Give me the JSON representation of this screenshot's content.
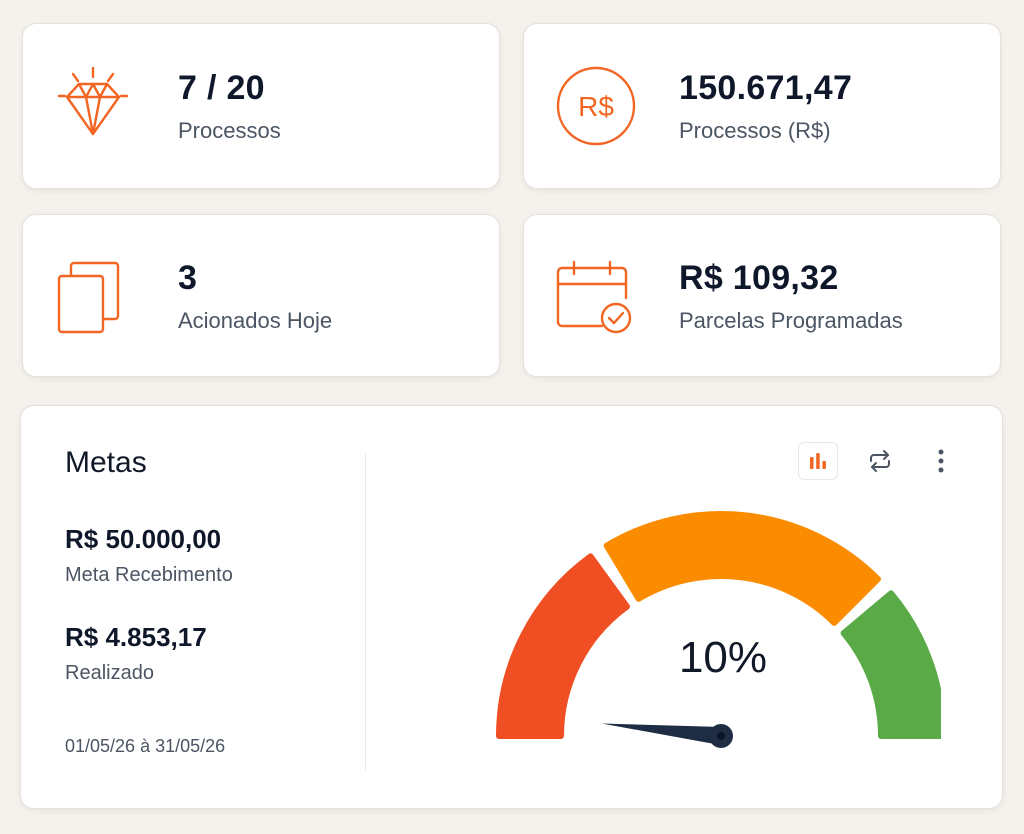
{
  "stats": [
    {
      "value": "7 / 20",
      "label": "Processos",
      "icon": "diamond-icon"
    },
    {
      "value": "150.671,47",
      "label": "Processos (R$)",
      "icon": "currency-real-icon",
      "icon_text": "R$"
    },
    {
      "value": "3",
      "label": "Acionados Hoje",
      "icon": "copy-pages-icon"
    },
    {
      "value": "R$ 109,32",
      "label": "Parcelas Programadas",
      "icon": "calendar-check-icon"
    }
  ],
  "metas": {
    "title": "Metas",
    "meta_value": "R$ 50.000,00",
    "meta_label": "Meta Recebimento",
    "realizado_value": "R$ 4.853,17",
    "realizado_label": "Realizado",
    "period": "01/05/26 à 31/05/26"
  },
  "toolbar": {
    "icons": [
      "bar-chart-icon",
      "swap-icon",
      "more-vertical-icon"
    ]
  },
  "gauge": {
    "percent": 10,
    "percent_label": "10%",
    "segments": [
      {
        "color": "#f04e23"
      },
      {
        "color": "#fb8c00"
      },
      {
        "color": "#5aab47"
      }
    ]
  },
  "colors": {
    "accent": "#f26522",
    "needle": "#1f2d44"
  }
}
